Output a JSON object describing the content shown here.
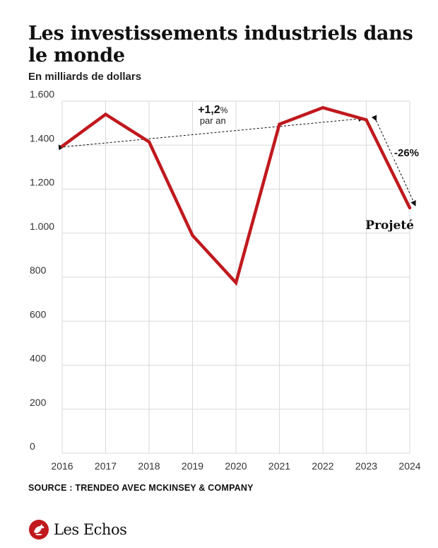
{
  "header": {
    "title": "Les investissements industriels dans le monde",
    "subtitle": "En milliards de dollars"
  },
  "chart_data": {
    "type": "line",
    "title": "Les investissements industriels dans le monde",
    "subtitle": "En milliards de dollars",
    "xlabel": "",
    "ylabel": "",
    "categories": [
      "2016",
      "2017",
      "2018",
      "2019",
      "2020",
      "2021",
      "2022",
      "2023",
      "2024"
    ],
    "series": [
      {
        "values": [
          1395,
          1540,
          1415,
          990,
          775,
          1495,
          1570,
          1515,
          1115
        ]
      }
    ],
    "ylim": [
      0,
      1600
    ],
    "yticks": [
      0,
      200,
      400,
      600,
      800,
      1000,
      1200,
      1400,
      1600
    ],
    "ytick_labels": [
      "0",
      "200",
      "400",
      "600",
      "800",
      "1.000",
      "1.200",
      "1.400",
      "1.600"
    ],
    "grid": true,
    "line_color": "#c0191e",
    "annotations": {
      "trend_value": "+1,2",
      "trend_unit": "%",
      "trend_note": "par an",
      "drop_label": "-26%",
      "projected_label": "Projeté"
    }
  },
  "footer": {
    "source": "SOURCE : TRENDEO AVEC MCKINSEY & COMPANY",
    "logo_text": "Les Echos",
    "logo_icon": "les-echos-rooster-icon",
    "logo_color": "#c0191e"
  }
}
